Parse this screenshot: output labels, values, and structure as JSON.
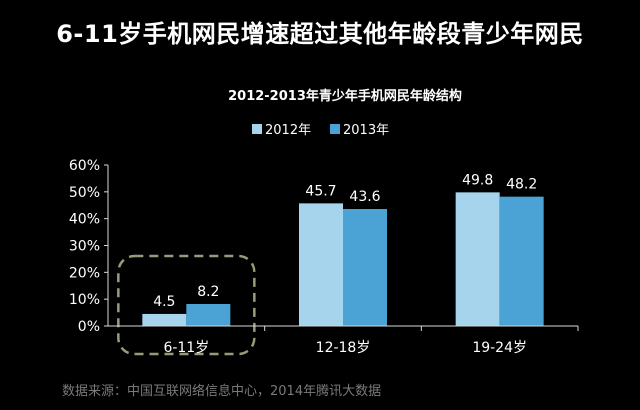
{
  "slide": {
    "title": "6-11岁手机网民增速超过其他年龄段青少年网民",
    "source": "数据来源：中国互联网络信息中心，2014年腾讯大数据"
  },
  "colors": {
    "background": "#000000",
    "series_2012": "#a6d4ec",
    "series_2013": "#4aa3d4",
    "highlight_box": "#9a9a7a"
  },
  "chart_data": {
    "type": "bar",
    "title": "2012-2013年青少年手机网民年龄结构",
    "categories": [
      "6-11岁",
      "12-18岁",
      "19-24岁"
    ],
    "series": [
      {
        "name": "2012年",
        "values": [
          4.5,
          45.7,
          49.8
        ],
        "labels": [
          "4.5",
          "45.7",
          "49.8"
        ]
      },
      {
        "name": "2013年",
        "values": [
          8.2,
          43.6,
          48.2
        ],
        "labels": [
          "8.2",
          "43.6",
          "48.2"
        ]
      }
    ],
    "ylim": [
      0,
      60
    ],
    "yticks": [
      "0%",
      "10%",
      "20%",
      "30%",
      "40%",
      "50%",
      "60%"
    ],
    "grid": false,
    "legend": "top",
    "highlight": "6-11岁"
  }
}
